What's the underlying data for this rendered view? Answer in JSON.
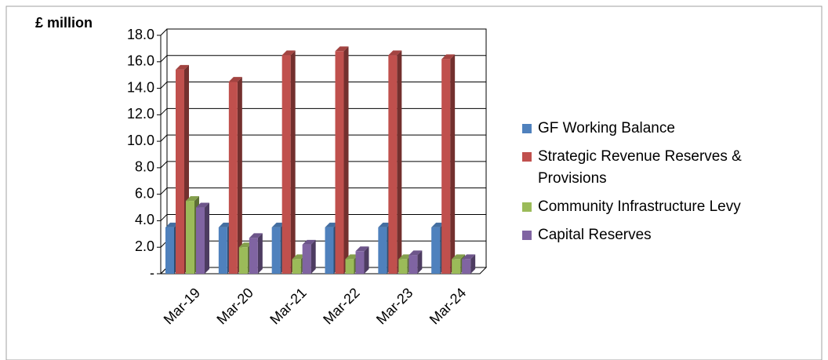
{
  "chart_data": {
    "type": "bar",
    "title": "£ million",
    "categories": [
      "Mar-19",
      "Mar-20",
      "Mar-21",
      "Mar-22",
      "Mar-23",
      "Mar-24"
    ],
    "series": [
      {
        "name": "GF Working Balance",
        "color": "#4f81bd",
        "values": [
          3.5,
          3.5,
          3.5,
          3.5,
          3.5,
          3.5
        ]
      },
      {
        "name": "Strategic Revenue Reserves & Provisions",
        "color": "#c0504d",
        "values": [
          15.4,
          14.5,
          16.5,
          16.8,
          16.5,
          16.2
        ]
      },
      {
        "name": "Community Infrastructure Levy",
        "color": "#9bbb59",
        "values": [
          5.5,
          2.0,
          1.1,
          1.1,
          1.1,
          1.1
        ]
      },
      {
        "name": "Capital Reserves",
        "color": "#8064a2",
        "values": [
          5.0,
          2.7,
          2.2,
          1.7,
          1.4,
          1.1
        ]
      }
    ],
    "ylim": [
      0,
      18
    ],
    "yticks": [
      {
        "value": 0,
        "label": "-"
      },
      {
        "value": 2,
        "label": "2.0"
      },
      {
        "value": 4,
        "label": "4.0"
      },
      {
        "value": 6,
        "label": "6.0"
      },
      {
        "value": 8,
        "label": "8.0"
      },
      {
        "value": 10,
        "label": "10.0"
      },
      {
        "value": 12,
        "label": "12.0"
      },
      {
        "value": 14,
        "label": "14.0"
      },
      {
        "value": 16,
        "label": "16.0"
      },
      {
        "value": 18,
        "label": "18.0"
      }
    ],
    "grid": true
  }
}
